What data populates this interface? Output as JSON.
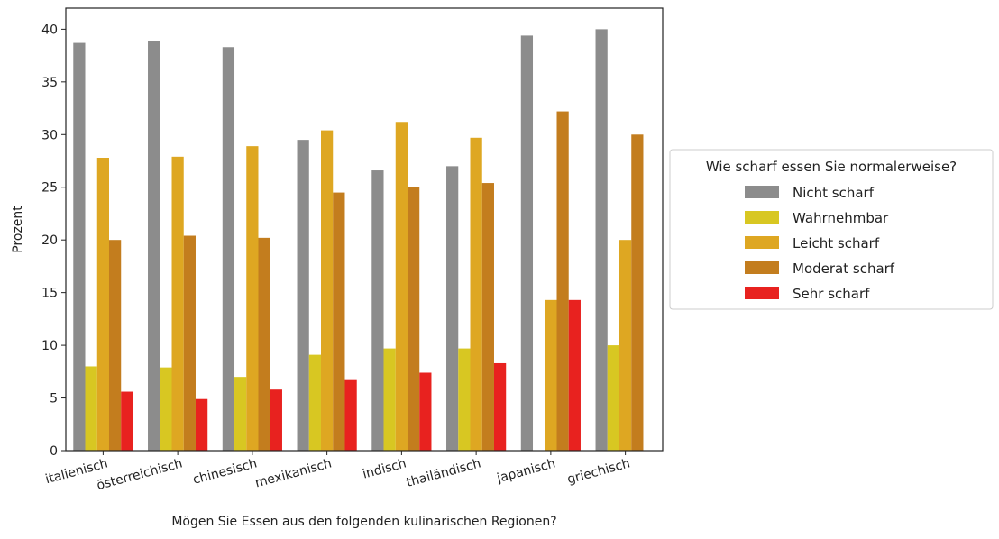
{
  "chart_data": {
    "type": "bar",
    "title": "",
    "xlabel": "Mögen Sie Essen aus den folgenden kulinarischen Regionen?",
    "ylabel": "Prozent",
    "ylim": [
      0,
      42
    ],
    "yticks": [
      0,
      5,
      10,
      15,
      20,
      25,
      30,
      35,
      40
    ],
    "grid": false,
    "categories": [
      "italienisch",
      "österreichisch",
      "chinesisch",
      "mexikanisch",
      "indisch",
      "thailändisch",
      "japanisch",
      "griechisch"
    ],
    "legend": {
      "title": "Wie scharf essen Sie normalerweise?",
      "placement": "center-right outside"
    },
    "series": [
      {
        "name": "Nicht scharf",
        "color": "#8c8c8c",
        "values": [
          38.7,
          38.9,
          38.3,
          29.5,
          26.6,
          27.0,
          39.4,
          40.0
        ]
      },
      {
        "name": "Wahrnehmbar",
        "color": "#d8c722",
        "values": [
          8.0,
          7.9,
          7.0,
          9.1,
          9.7,
          9.7,
          0,
          10.0
        ]
      },
      {
        "name": "Leicht scharf",
        "color": "#dea722",
        "values": [
          27.8,
          27.9,
          28.9,
          30.4,
          31.2,
          29.7,
          14.3,
          20.0
        ]
      },
      {
        "name": "Moderat scharf",
        "color": "#c37d1e",
        "values": [
          20.0,
          20.4,
          20.2,
          24.5,
          25.0,
          25.4,
          32.2,
          30.0
        ]
      },
      {
        "name": "Sehr scharf",
        "color": "#e8221f",
        "values": [
          5.6,
          4.9,
          5.8,
          6.7,
          7.4,
          8.3,
          14.3,
          0
        ]
      }
    ]
  }
}
